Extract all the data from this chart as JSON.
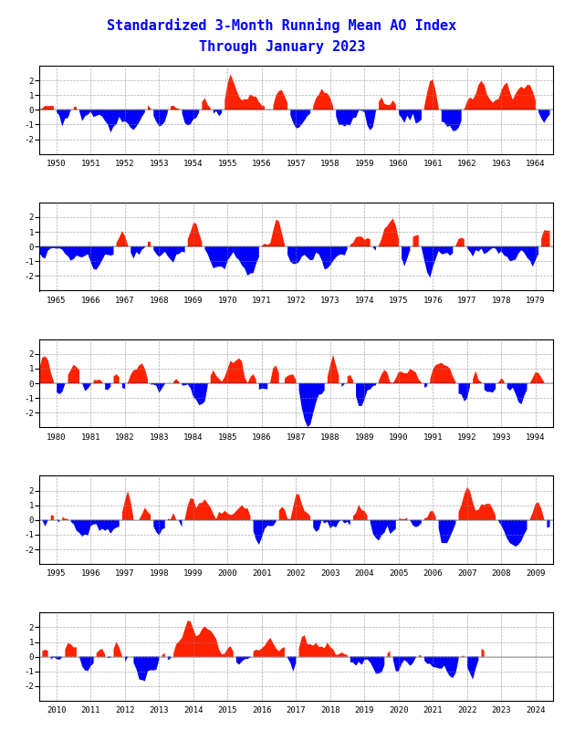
{
  "title_line1": "Standardized 3-Month Running Mean AO Index",
  "title_line2": "Through January 2023",
  "title_color": "blue",
  "title_fontsize": 11,
  "positive_color": "#FF2200",
  "negative_color": "#0000FF",
  "background_color": "white",
  "panel_bg": "white",
  "grid_color": "#888888",
  "tick_fontsize": 6.5,
  "ylim": [
    -3,
    3
  ],
  "yticks": [
    -2,
    -1,
    0,
    1,
    2
  ],
  "panels": [
    {
      "start_year": 1950,
      "end_year": 1964
    },
    {
      "start_year": 1965,
      "end_year": 1979
    },
    {
      "start_year": 1980,
      "end_year": 1994
    },
    {
      "start_year": 1995,
      "end_year": 2009
    },
    {
      "start_year": 2010,
      "end_year": 2024
    }
  ]
}
